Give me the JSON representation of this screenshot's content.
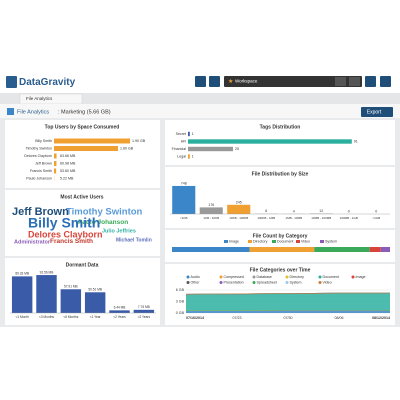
{
  "header": {
    "logo": "DataGravity",
    "workspace": "Workspace"
  },
  "tabs": [
    "File Analytics"
  ],
  "breadcrumb": {
    "section": "File Analytics",
    "title": ": Marketing (5.66 GB)"
  },
  "export": "Export",
  "top_users": {
    "title": "Top Users by Space Consumed",
    "categories": [
      "Billy Smith",
      "Timothy Swinton",
      "Delores Clayborn",
      "Jeff Brown",
      "Francis Smith",
      "Paulo Johanson"
    ],
    "values": [
      1.9,
      1.6,
      0.06366,
      0.06098,
      0.0536,
      0.00522
    ],
    "value_labels": [
      "1.90 GB",
      "1.60 GB",
      "63.66 MB",
      "60.98 MB",
      "53.60 MB",
      "5.22 MB"
    ],
    "xlim": [
      0,
      2
    ],
    "color": "#f0a030"
  },
  "active_users": {
    "title": "Most Active Users",
    "words": [
      "Jeff Brown",
      "Timothy Swinton",
      "Paulo Johanson",
      "Billy Smith",
      "Delores Clayborn",
      "Julio Jeffries",
      "Administrator",
      "Francis Smith",
      "Michael Tomlin"
    ]
  },
  "dormant": {
    "title": "Dormant Data",
    "categories": [
      "<1 Month",
      "<3 Months",
      "<6 Months",
      "<1 Year",
      "<2 Years",
      ">2 Years"
    ],
    "values": [
      89.33,
      92.56,
      57.91,
      50.51,
      6.44,
      7.75
    ],
    "value_labels": [
      "89.33 MB",
      "92.56 MB",
      "57.91 MB",
      "50.51 MB",
      "6.44 MB",
      "7.75 MB"
    ],
    "ylim": [
      0,
      100
    ],
    "color": "#3a5ca8"
  },
  "tags": {
    "title": "Tags Distribution",
    "categories": [
      "Secret",
      "HR",
      "Financial",
      "Legal"
    ],
    "values": [
      1,
      91,
      25,
      1
    ],
    "colors": [
      "#3a5ca8",
      "#2bb0a0",
      "#999999",
      "#f0a030"
    ],
    "xlim": [
      0,
      100
    ]
  },
  "file_size": {
    "title": "File Distribution by Size",
    "categories": [
      "<1KB",
      "1KB - 10KB",
      "10KB - 100KB",
      "100KB - 1MB",
      "1MB - 10MB",
      "10MB - 100MB",
      "100MB - 1GB",
      ">1GB"
    ],
    "values": [
      748,
      176,
      245,
      6,
      4,
      12,
      0,
      0
    ],
    "colors": [
      "#3a86c8",
      "#9a9a9a",
      "#f0a030",
      "#9a9a9a",
      "#9a9a9a",
      "#9a9a9a",
      "#9a9a9a",
      "#9a9a9a"
    ],
    "ylim": [
      0,
      800
    ]
  },
  "file_count": {
    "title": "File Count by Category",
    "series": [
      {
        "name": "Image",
        "color": "#3a86c8",
        "value": 420
      },
      {
        "name": "Directory",
        "color": "#f0a030",
        "value": 350
      },
      {
        "name": "Document",
        "color": "#3aaa5a",
        "value": 300
      },
      {
        "name": "Video",
        "color": "#d9443a",
        "value": 60
      },
      {
        "name": "System",
        "color": "#8a5cb8",
        "value": 50
      }
    ]
  },
  "over_time": {
    "title": "File Categories over Time",
    "x": [
      "07/16/2014",
      "07/23",
      "07/30",
      "08/06",
      "08/12/2014"
    ],
    "ylim": [
      0,
      6
    ],
    "yticks": [
      {
        "value": 0,
        "label": "0 GB"
      },
      {
        "value": 3,
        "label": "3 GB"
      },
      {
        "value": 6,
        "label": "6 GB"
      }
    ],
    "series": [
      {
        "name": "Audio",
        "color": "#3a86c8",
        "values": [
          0.6,
          0.6,
          0.7,
          0.7,
          0.7
        ]
      },
      {
        "name": "Compressed",
        "color": "#f0a030",
        "values": [
          0,
          0,
          0,
          0,
          0
        ]
      },
      {
        "name": "Database",
        "color": "#9a9a9a",
        "values": [
          0,
          0,
          0,
          0,
          0
        ]
      },
      {
        "name": "Directory",
        "color": "#e0c030",
        "values": [
          0,
          0,
          0,
          0,
          0
        ]
      },
      {
        "name": "Document",
        "color": "#2bb0a0",
        "values": [
          4.2,
          4.3,
          4.3,
          4.4,
          4.4
        ]
      },
      {
        "name": "Image",
        "color": "#d9443a",
        "values": [
          0.1,
          0.1,
          0.1,
          0.1,
          0.1
        ]
      },
      {
        "name": "Other",
        "color": "#555555",
        "values": [
          0,
          0,
          0,
          0,
          0
        ]
      },
      {
        "name": "Presentation",
        "color": "#8a5cb8",
        "values": [
          0,
          0,
          0,
          0,
          0
        ]
      },
      {
        "name": "Spreadsheet",
        "color": "#3aaa5a",
        "values": [
          0,
          0,
          0,
          0,
          0
        ]
      },
      {
        "name": "System",
        "color": "#a0c8e8",
        "values": [
          0,
          0,
          0,
          0,
          0
        ]
      },
      {
        "name": "Video",
        "color": "#c87a3a",
        "values": [
          0,
          0,
          0,
          0,
          0
        ]
      }
    ]
  }
}
